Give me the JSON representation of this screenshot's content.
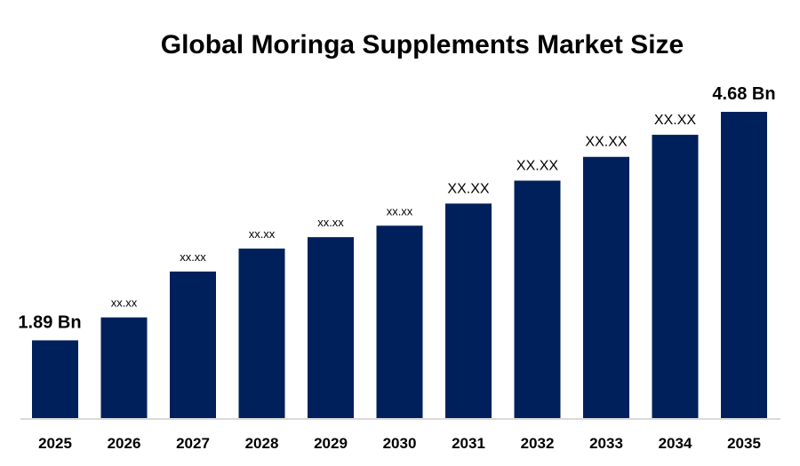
{
  "chart_data": {
    "type": "bar",
    "title": "Global Moringa Supplements Market Size",
    "xlabel": "",
    "ylabel": "",
    "categories": [
      "2025",
      "2026",
      "2027",
      "2028",
      "2029",
      "2030",
      "2031",
      "2032",
      "2033",
      "2034",
      "2035"
    ],
    "values": [
      1.89,
      2.17,
      2.73,
      3.01,
      3.15,
      3.29,
      3.56,
      3.84,
      4.13,
      4.4,
      4.68
    ],
    "data_labels": [
      "1.89 Bn",
      "xx.xx",
      "xx.xx",
      "xx.xx",
      "xx.xx",
      "xx.xx",
      "XX.XX",
      "XX.XX",
      "XX.XX",
      "XX.XX",
      "4.68 Bn"
    ],
    "ylim": [
      0.93,
      4.68
    ],
    "grid": false,
    "legend": "none",
    "colors": {
      "bar": "#00205b",
      "axis": "#d9d9d9"
    }
  }
}
